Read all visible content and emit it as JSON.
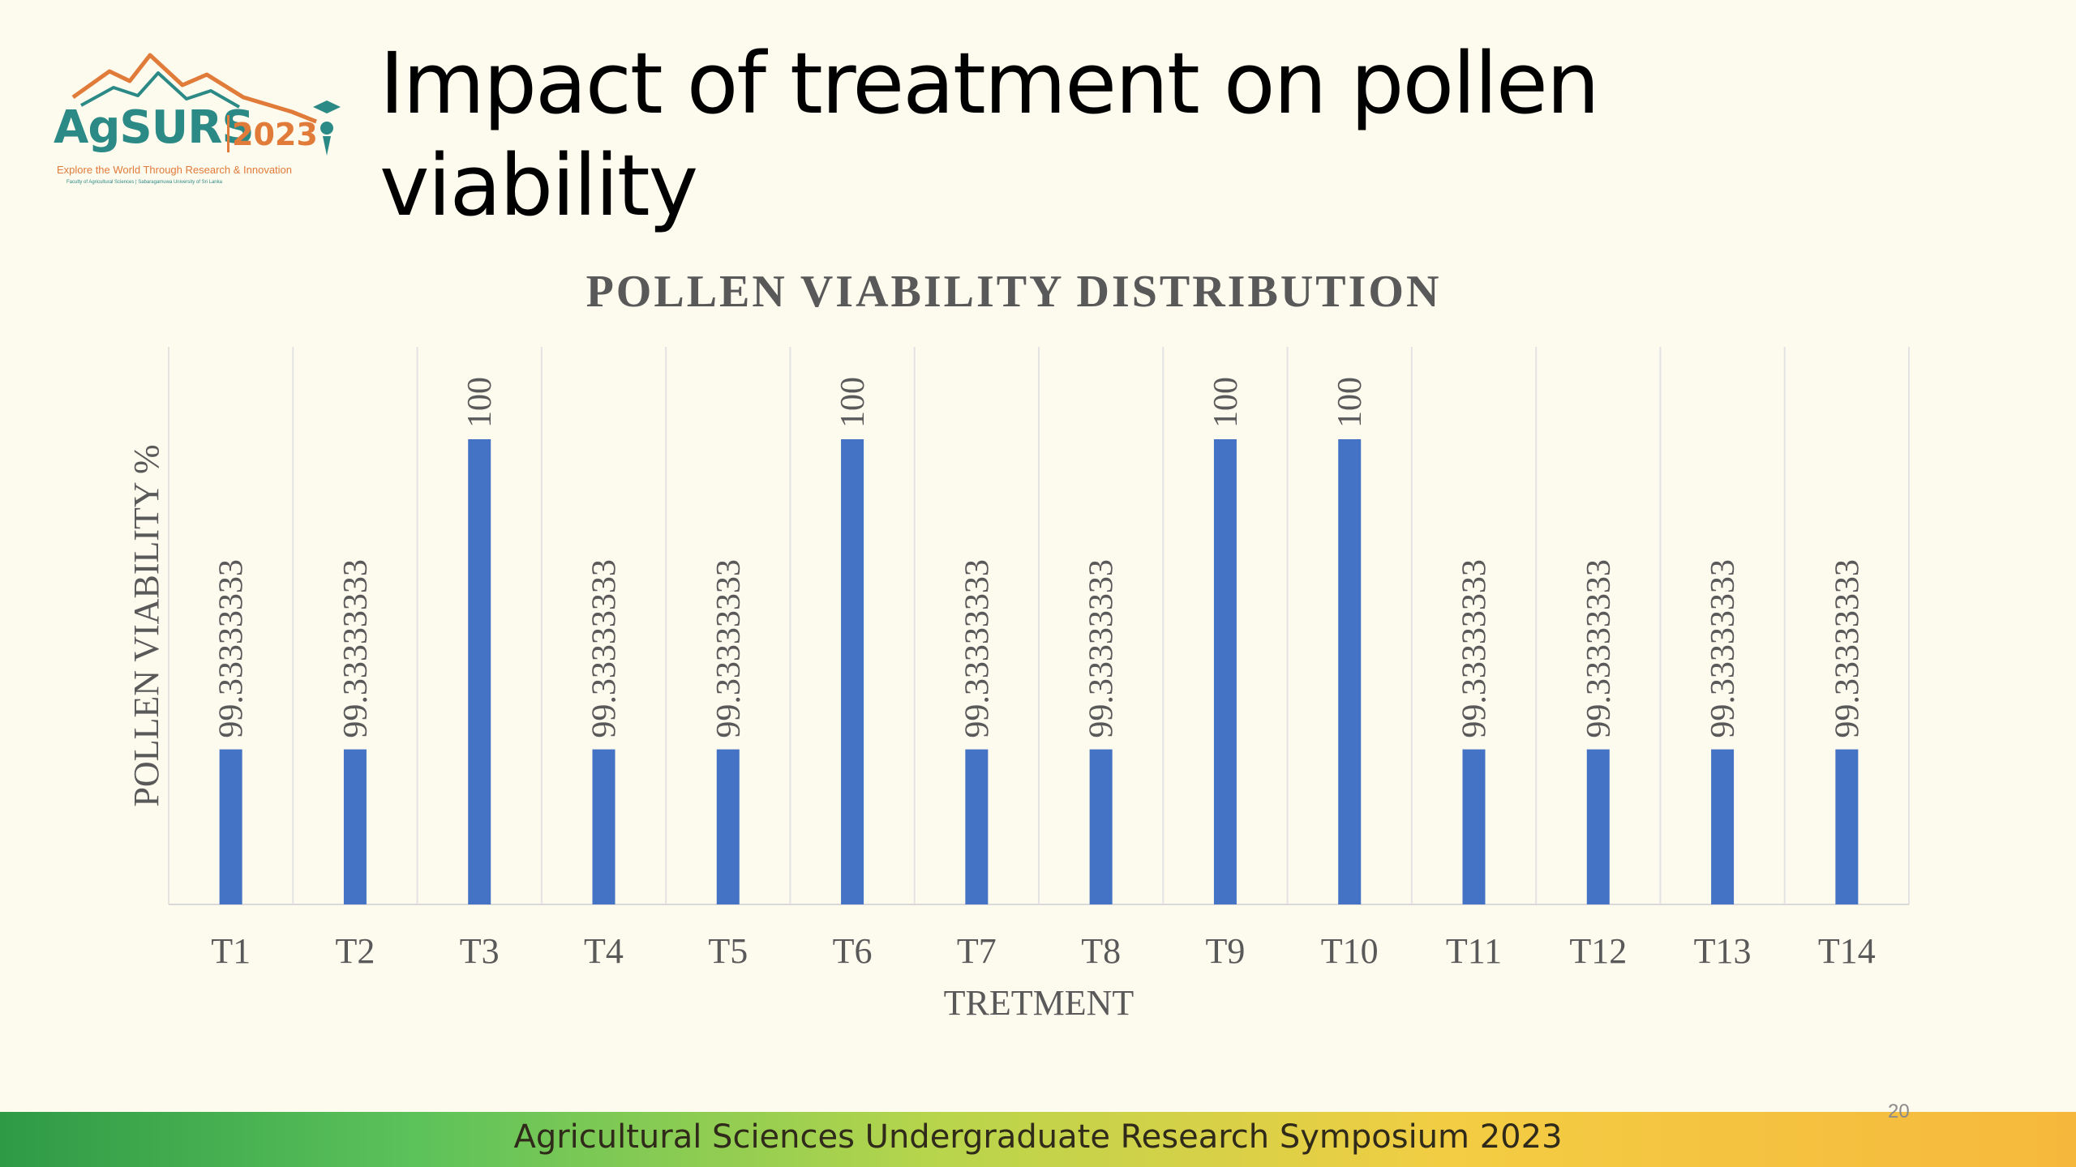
{
  "logo": {
    "brand": "AgSURS",
    "year": "2023",
    "tagline": "Explore the World Through Research & Innovation",
    "subtext": "Faculty of Agricultural Sciences | Sabaragamuwa University of Sri Lanka"
  },
  "slide": {
    "title": "Impact of treatment on pollen viability",
    "page_number": "20"
  },
  "footer": {
    "text": "Agricultural Sciences Undergraduate Research Symposium 2023"
  },
  "colors": {
    "bar": "#4472c4",
    "background": "#fdfaee",
    "brand_teal": "#2c8a86",
    "brand_orange": "#e07b39"
  },
  "chart_data": {
    "type": "bar",
    "title": "POLLEN VIABILITY DISTRIBUTION",
    "xlabel": "TRETMENT",
    "ylabel": "POLLEN VIABILITY %",
    "categories": [
      "T1",
      "T2",
      "T3",
      "T4",
      "T5",
      "T6",
      "T7",
      "T8",
      "T9",
      "T10",
      "T11",
      "T12",
      "T13",
      "T14"
    ],
    "values": [
      99.33333333,
      99.33333333,
      100,
      99.33333333,
      99.33333333,
      100,
      99.33333333,
      99.33333333,
      100,
      100,
      99.33333333,
      99.33333333,
      99.33333333,
      99.33333333
    ],
    "data_labels": [
      "99.33333333",
      "99.33333333",
      "100",
      "99.33333333",
      "99.33333333",
      "100",
      "99.33333333",
      "99.33333333",
      "100",
      "100",
      "99.33333333",
      "99.33333333",
      "99.33333333",
      "99.33333333"
    ],
    "ylim": [
      99,
      100
    ],
    "grid": "vertical",
    "legend": "none"
  }
}
